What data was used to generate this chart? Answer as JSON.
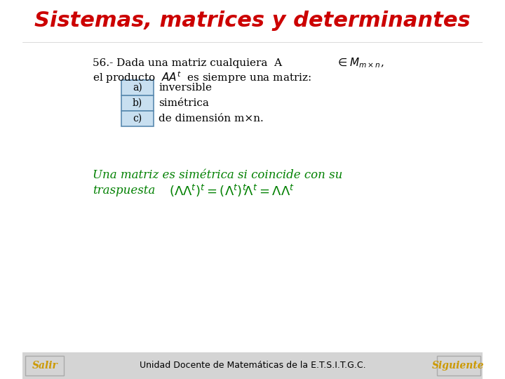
{
  "background_color": "#ffffff",
  "title": "Sistemas, matrices y determinantes",
  "title_color": "#cc0000",
  "title_fontsize": 22,
  "title_style": "italic",
  "title_weight": "bold",
  "footer_text": "Unidad Docente de Matemáticas de la E.T.S.I.T.G.C.",
  "footer_fontsize": 10,
  "salir_text": "Salir",
  "salir_color": "#cc9900",
  "siguiente_text": "Siguiente",
  "siguiente_color": "#cc9900",
  "box_bg": "#c8dff0",
  "box_border": "#5a8ab0",
  "options": [
    "a)",
    "b)",
    "c)"
  ],
  "option_labels": [
    "inversible",
    "simétrica",
    "de dimensión m×n."
  ],
  "green_color": "#008000",
  "black_color": "#000000",
  "line1": "56.- Dada una matriz cualquiera  A ",
  "sub_mxn": "m×n",
  "line1b": ",",
  "line2": "el producto  AA",
  "line2b": "t",
  "line2c": " es siempre una matriz:",
  "green_line1": "Una matriz es simétrica si coincide con su",
  "green_line2": "traspuesta",
  "formula": "(\\Lambda \\Lambda^{t})^{t} = (\\Lambda^{t})^{t}  \\Lambda^{t} = \\Lambda \\Lambda^{t}"
}
